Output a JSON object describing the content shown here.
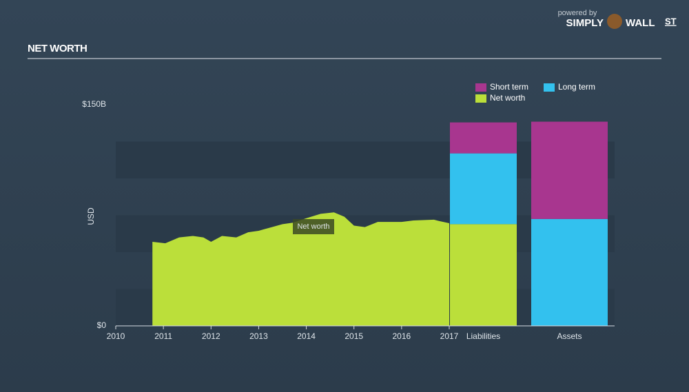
{
  "branding": {
    "powered_by": "powered by",
    "name_left": "SIMPLY",
    "name_right": "WALL",
    "name_suffix": "ST"
  },
  "chart_data": {
    "type": "area",
    "title": "NET WORTH",
    "y_label": "USD",
    "annotation": "Net worth",
    "x": [
      2010.77,
      2011.04,
      2011.33,
      2011.62,
      2011.84,
      2012.0,
      2012.23,
      2012.53,
      2012.78,
      2013.0,
      2013.28,
      2013.5,
      2013.72,
      2014.0,
      2014.3,
      2014.58,
      2014.8,
      2015.0,
      2015.23,
      2015.5,
      2016.0,
      2016.25,
      2016.68,
      2016.8,
      2017.0
    ],
    "values": [
      57,
      56,
      60,
      61,
      60,
      57,
      61,
      60,
      63.5,
      64.5,
      67,
      69,
      70,
      73,
      76,
      77,
      74,
      68,
      67,
      70.5,
      70.5,
      71.5,
      72,
      71,
      69.6
    ],
    "color": "#bbdf3a",
    "xlim": [
      2010,
      2017
    ],
    "xticks": [
      2010,
      2011,
      2012,
      2013,
      2014,
      2015,
      2016,
      2017
    ],
    "ylim": [
      0,
      150
    ],
    "yticks": [
      {
        "value": 0,
        "label": "$0"
      },
      {
        "value": 150,
        "label": "$150B"
      }
    ],
    "bars": {
      "categories": [
        "Liabilities",
        "Assets"
      ],
      "series": [
        {
          "name": "Short term",
          "color": "#a8368f",
          "values": [
            21,
            66
          ]
        },
        {
          "name": "Long term",
          "color": "#33c1ee",
          "values": [
            48,
            72.5
          ]
        },
        {
          "name": "Net worth",
          "color": "#bbdf3a",
          "values": [
            69,
            null
          ]
        }
      ]
    }
  }
}
